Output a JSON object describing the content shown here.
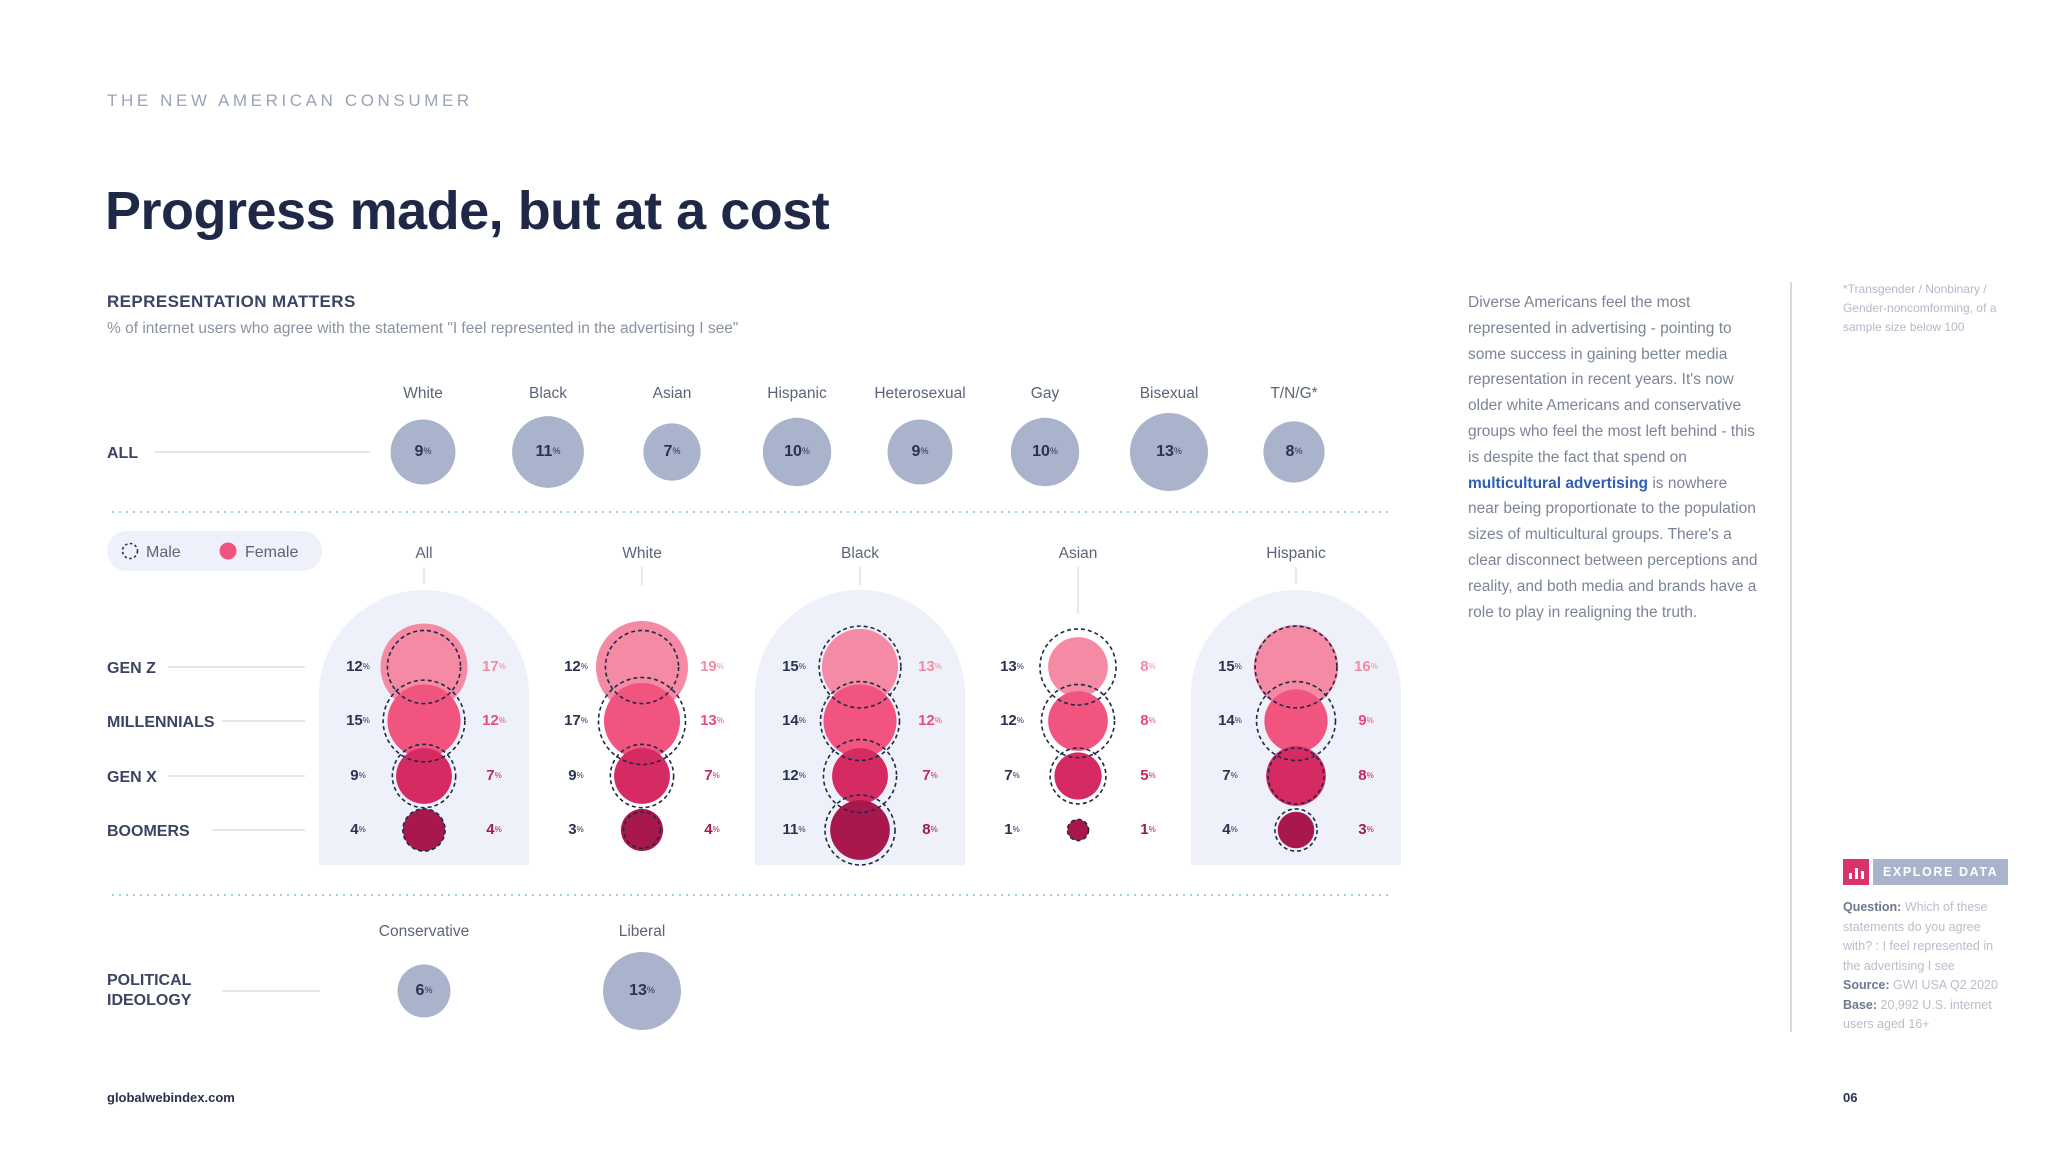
{
  "header": {
    "kicker": "THE NEW AMERICAN CONSUMER",
    "title": "Progress made, but at a cost"
  },
  "chart_data": {
    "type": "bubble",
    "title": "REPRESENTATION MATTERS",
    "subtitle": "% of internet users who agree with the statement \"I feel represented in the advertising I see\"",
    "unit": "%",
    "all": {
      "label": "ALL",
      "categories": [
        "White",
        "Black",
        "Asian",
        "Hispanic",
        "Heterosexual",
        "Gay",
        "Bisexual",
        "T/N/G*"
      ],
      "values": [
        9,
        11,
        7,
        10,
        9,
        10,
        13,
        8
      ]
    },
    "legend": {
      "male": "Male",
      "female": "Female"
    },
    "generations": [
      "GEN Z",
      "MILLENNIALS",
      "GEN X",
      "BOOMERS"
    ],
    "groups": [
      {
        "name": "All",
        "male": [
          12,
          15,
          9,
          4
        ],
        "female": [
          17,
          12,
          7,
          4
        ]
      },
      {
        "name": "White",
        "male": [
          12,
          17,
          9,
          3
        ],
        "female": [
          19,
          13,
          7,
          4
        ]
      },
      {
        "name": "Black",
        "male": [
          15,
          14,
          12,
          11
        ],
        "female": [
          13,
          12,
          7,
          8
        ]
      },
      {
        "name": "Asian",
        "male": [
          13,
          12,
          7,
          1
        ],
        "female": [
          8,
          8,
          5,
          1
        ]
      },
      {
        "name": "Hispanic",
        "male": [
          15,
          14,
          7,
          4
        ],
        "female": [
          16,
          9,
          8,
          3
        ]
      }
    ],
    "political": {
      "label": "POLITICAL IDEOLOGY",
      "categories": [
        "Conservative",
        "Liberal"
      ],
      "values": [
        6,
        13
      ]
    },
    "colors": {
      "grey_bubble": "#a9b3cc",
      "grey_value": "#2a3352",
      "gen_colors": [
        "#f48aa3",
        "#f1557f",
        "#d62a63",
        "#a8184c"
      ],
      "female_text": [
        "#f48aa3",
        "#ea4c78",
        "#c7265a",
        "#a8184c"
      ],
      "panel": "#eef1fa",
      "label_dark": "#3b4462",
      "line": "#d3d8e2"
    }
  },
  "side": {
    "body_1": "Diverse Americans feel the most represented in advertising - pointing to some success in gaining better media representation in recent years. It's now older white Americans and conservative groups who feel the most left behind - this is despite the fact that spend on ",
    "body_link": "multicultural advertising",
    "body_2": " is nowhere near being proportionate to the population sizes of multicultural groups. There's a clear disconnect between perceptions and reality, and both media and brands have a role to play in realigning the truth.",
    "footnote": "*Transgender / Nonbinary / Gender-noncomforming, of a sample size below 100",
    "explore": "EXPLORE DATA",
    "question_label": "Question:",
    "question": " Which of these statements do you agree with? : I feel represented in the advertising I see",
    "source_label": "Source:",
    "source": " GWI USA Q2 2020",
    "base_label": "Base:",
    "base": " 20,992 U.S. internet users aged 16+"
  },
  "footer": {
    "site": "globalwebindex.com",
    "page": "06"
  }
}
